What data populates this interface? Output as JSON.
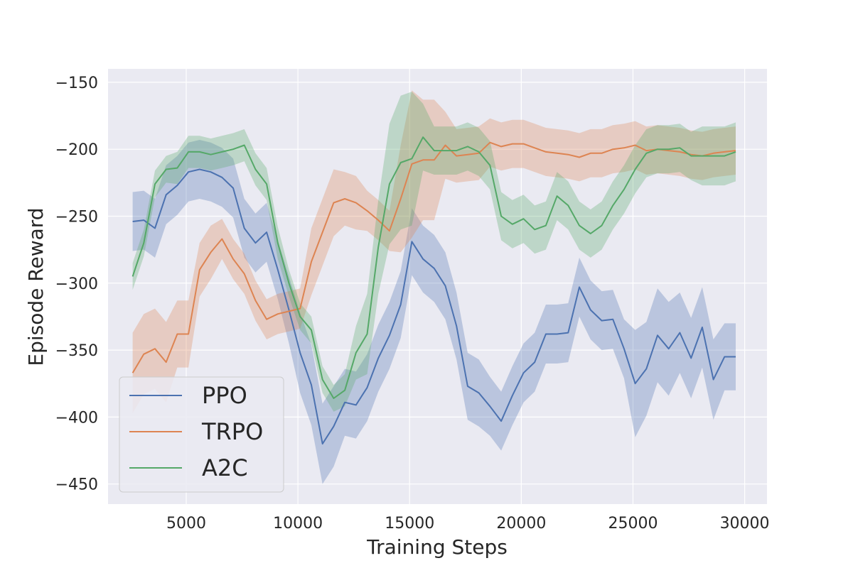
{
  "chart_data": {
    "type": "line",
    "title": "",
    "xlabel": "Training Steps",
    "ylabel": "Episode Reward",
    "xlim": [
      1500,
      31000
    ],
    "ylim": [
      -465,
      -140
    ],
    "x_ticks": [
      5000,
      10000,
      15000,
      20000,
      25000,
      30000
    ],
    "y_ticks": [
      -150,
      -200,
      -250,
      -300,
      -350,
      -400,
      -450
    ],
    "grid": true,
    "legend_position": "lower-left",
    "colors": {
      "background": "#EAEAF2",
      "grid": "#FFFFFF",
      "text": "#262626"
    },
    "x": [
      2600,
      3100,
      3600,
      4100,
      4600,
      5100,
      5600,
      6100,
      6600,
      7100,
      7600,
      8100,
      8600,
      9100,
      9600,
      10100,
      10600,
      11100,
      11600,
      12100,
      12600,
      13100,
      13600,
      14100,
      14600,
      15100,
      15600,
      16100,
      16600,
      17100,
      17600,
      18100,
      18600,
      19100,
      19600,
      20100,
      20600,
      21100,
      21600,
      22100,
      22600,
      23100,
      23600,
      24100,
      24600,
      25100,
      25600,
      26100,
      26600,
      27100,
      27600,
      28100,
      28600,
      29100,
      29600
    ],
    "series": [
      {
        "name": "PPO",
        "color": "#4C72B0",
        "values": [
          -254,
          -253,
          -259,
          -234,
          -227,
          -217,
          -215,
          -217,
          -221,
          -229,
          -259,
          -270,
          -262,
          -290,
          -320,
          -352,
          -376,
          -420,
          -407,
          -389,
          -391,
          -378,
          -356,
          -339,
          -316,
          -269,
          -282,
          -289,
          -302,
          -332,
          -377,
          -382,
          -392,
          -403,
          -384,
          -367,
          -359,
          -338,
          -338,
          -337,
          -303,
          -320,
          -328,
          -327,
          -349,
          -375,
          -364,
          -339,
          -349,
          -337,
          -356,
          -333,
          -372,
          -355,
          -355
        ],
        "band": [
          22,
          22,
          22,
          22,
          22,
          22,
          22,
          22,
          22,
          22,
          22,
          22,
          22,
          22,
          25,
          30,
          30,
          30,
          30,
          25,
          25,
          25,
          25,
          25,
          25,
          25,
          25,
          25,
          25,
          25,
          25,
          25,
          22,
          22,
          22,
          22,
          22,
          22,
          22,
          22,
          22,
          22,
          22,
          22,
          22,
          40,
          35,
          35,
          35,
          30,
          30,
          30,
          30,
          25,
          25
        ]
      },
      {
        "name": "TRPO",
        "color": "#DD8452",
        "values": [
          -367,
          -353,
          -349,
          -359,
          -338,
          -338,
          -290,
          -277,
          -267,
          -282,
          -293,
          -313,
          -327,
          -323,
          -321,
          -319,
          -284,
          -262,
          -240,
          -237,
          -240,
          -246,
          -253,
          -261,
          -237,
          -211,
          -208,
          -208,
          -197,
          -205,
          -204,
          -203,
          -195,
          -198,
          -196,
          -196,
          -199,
          -202,
          -203,
          -204,
          -206,
          -203,
          -203,
          -200,
          -199,
          -197,
          -201,
          -200,
          -201,
          -202,
          -204,
          -205,
          -203,
          -202,
          -201
        ],
        "band": [
          30,
          30,
          30,
          30,
          25,
          25,
          20,
          20,
          15,
          15,
          15,
          15,
          15,
          15,
          15,
          15,
          25,
          25,
          25,
          20,
          20,
          15,
          15,
          15,
          40,
          55,
          45,
          45,
          25,
          20,
          20,
          20,
          18,
          18,
          18,
          18,
          18,
          18,
          18,
          18,
          18,
          18,
          18,
          18,
          18,
          18,
          18,
          18,
          18,
          18,
          18,
          18,
          18,
          18,
          18
        ]
      },
      {
        "name": "A2C",
        "color": "#55A868",
        "values": [
          -295,
          -270,
          -226,
          -215,
          -214,
          -202,
          -202,
          -204,
          -202,
          -200,
          -197,
          -215,
          -226,
          -270,
          -300,
          -325,
          -335,
          -372,
          -386,
          -380,
          -352,
          -338,
          -273,
          -226,
          -210,
          -207,
          -191,
          -201,
          -201,
          -201,
          -198,
          -202,
          -212,
          -250,
          -256,
          -252,
          -260,
          -257,
          -235,
          -242,
          -257,
          -263,
          -257,
          -242,
          -230,
          -215,
          -203,
          -200,
          -200,
          -199,
          -205,
          -205,
          -205,
          -205,
          -202
        ],
        "band": [
          10,
          10,
          10,
          10,
          12,
          12,
          12,
          12,
          12,
          12,
          12,
          12,
          12,
          12,
          10,
          10,
          10,
          10,
          10,
          12,
          20,
          30,
          35,
          45,
          50,
          50,
          25,
          18,
          18,
          18,
          18,
          18,
          18,
          18,
          18,
          18,
          18,
          18,
          18,
          18,
          18,
          18,
          18,
          18,
          18,
          18,
          18,
          18,
          18,
          18,
          18,
          22,
          22,
          22,
          22
        ]
      }
    ]
  }
}
